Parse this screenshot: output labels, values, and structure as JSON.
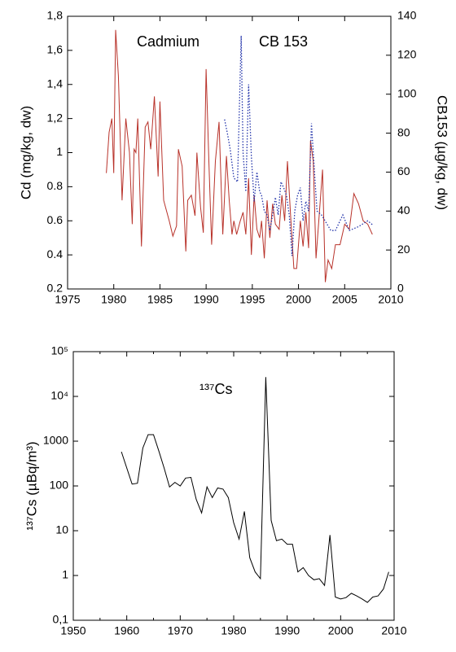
{
  "chart_data": [
    {
      "type": "line",
      "xlim": [
        1975,
        2010
      ],
      "xticks": [
        1975,
        1980,
        1985,
        1990,
        1995,
        2000,
        2005,
        2010
      ],
      "ylim": [
        0.2,
        1.8
      ],
      "yticks": [
        0.2,
        0.4,
        0.6,
        0.8,
        1,
        {
          "value": 1.2,
          "label": "1,2"
        },
        {
          "value": 1.4,
          "label": "1,4"
        },
        {
          "value": 1.6,
          "label": "1,6"
        },
        {
          "value": 1.8,
          "label": "1,8"
        }
      ],
      "y2lim": [
        0,
        140
      ],
      "y2ticks": [
        0,
        20,
        40,
        60,
        80,
        100,
        120,
        140
      ],
      "ylabel": "Cd (mg/kg, dw)",
      "y2label": "CB153 (µg/kg, dw)",
      "series": [
        {
          "name": "Cadmium",
          "color": "#b8322a",
          "dash": false,
          "x": [
            1979.2,
            1979.5,
            1979.8,
            1980.0,
            1980.2,
            1980.5,
            1980.9,
            1981.3,
            1981.7,
            1982.0,
            1982.2,
            1982.4,
            1982.6,
            1983.0,
            1983.4,
            1983.7,
            1984.0,
            1984.4,
            1984.8,
            1985.0,
            1985.4,
            1986.0,
            1986.4,
            1986.8,
            1987.0,
            1987.4,
            1987.8,
            1988.0,
            1988.4,
            1988.8,
            1989.0,
            1989.4,
            1989.7,
            1990.0,
            1990.3,
            1990.6,
            1991.0,
            1991.4,
            1991.8,
            1992.2,
            1992.5,
            1992.8,
            1993.0,
            1993.3,
            1993.7,
            1994.0,
            1994.3,
            1994.6,
            1994.9,
            1995.2,
            1995.5,
            1995.8,
            1996.0,
            1996.3,
            1996.6,
            1996.9,
            1997.2,
            1997.5,
            1997.9,
            1998.2,
            1998.5,
            1998.8,
            1999.2,
            1999.5,
            1999.8,
            2000.2,
            2000.5,
            2000.8,
            2001.1,
            2001.3,
            2001.6,
            2001.9,
            2002.2,
            2002.6,
            2002.9,
            2003.2,
            2003.6,
            2004.0,
            2004.5,
            2005.0,
            2005.5,
            2006.0,
            2006.5,
            2007.0,
            2007.5,
            2008.0
          ],
          "values": [
            0.88,
            1.12,
            1.2,
            0.88,
            1.72,
            1.45,
            0.72,
            1.2,
            1.0,
            0.58,
            1.02,
            1.0,
            1.2,
            0.45,
            1.15,
            1.18,
            1.02,
            1.33,
            0.86,
            1.3,
            0.72,
            0.6,
            0.51,
            0.57,
            1.02,
            0.92,
            0.42,
            0.72,
            0.75,
            0.63,
            1.0,
            0.68,
            0.53,
            1.49,
            0.95,
            0.46,
            0.95,
            1.18,
            0.52,
            0.98,
            0.72,
            0.52,
            0.6,
            0.52,
            0.6,
            0.65,
            0.52,
            0.85,
            0.4,
            0.75,
            0.55,
            0.5,
            0.6,
            0.38,
            0.72,
            0.5,
            0.7,
            0.58,
            0.55,
            0.75,
            0.6,
            0.95,
            0.58,
            0.32,
            0.32,
            0.6,
            0.45,
            0.65,
            0.44,
            1.07,
            0.95,
            0.38,
            0.6,
            0.9,
            0.24,
            0.37,
            0.32,
            0.46,
            0.46,
            0.58,
            0.55,
            0.76,
            0.7,
            0.6,
            0.58,
            0.52
          ]
        },
        {
          "name": "CB 153",
          "color": "#2233aa",
          "dash": true,
          "axis": "y2",
          "x": [
            1992.0,
            1992.3,
            1992.6,
            1993.0,
            1993.4,
            1993.8,
            1994.0,
            1994.3,
            1994.6,
            1994.9,
            1995.2,
            1995.5,
            1995.8,
            1996.0,
            1996.3,
            1996.6,
            1996.9,
            1997.2,
            1997.5,
            1997.8,
            1998.1,
            1998.4,
            1998.7,
            1999.0,
            1999.3,
            1999.6,
            1999.9,
            2000.2,
            2000.5,
            2000.8,
            2001.1,
            2001.4,
            2001.6,
            2002.0,
            2002.5,
            2003.5,
            2004.0,
            2004.8,
            2005.5,
            2006.5,
            2007.5,
            2008.0
          ],
          "values": [
            87,
            80,
            72,
            57,
            55,
            130,
            70,
            50,
            105,
            68,
            45,
            60,
            50,
            48,
            40,
            38,
            30,
            38,
            47,
            38,
            55,
            52,
            48,
            38,
            17,
            40,
            48,
            52,
            35,
            45,
            40,
            85,
            70,
            40,
            38,
            30,
            30,
            38,
            30,
            32,
            35,
            33
          ]
        }
      ]
    },
    {
      "type": "line",
      "log_y": true,
      "xlim": [
        1950,
        2010
      ],
      "xticks": [
        1950,
        1960,
        1970,
        1980,
        1990,
        2000,
        2010
      ],
      "ylim": [
        0.1,
        100000
      ],
      "yticks": [
        {
          "value": 0.1,
          "label": "0,1"
        },
        1,
        10,
        100,
        1000,
        {
          "value": 10000,
          "label": "10⁴"
        },
        {
          "value": 100000,
          "label": "10⁵"
        }
      ],
      "ylabel": "¹³⁷Cs (µBq/m³)",
      "annotation": "¹³⁷Cs",
      "color": "#000000",
      "x": [
        1959,
        1961,
        1962,
        1963,
        1964,
        1965,
        1966,
        1967,
        1968,
        1969,
        1970,
        1971,
        1972,
        1973,
        1974,
        1975,
        1976,
        1977,
        1978,
        1979,
        1980,
        1981,
        1982,
        1983,
        1984,
        1985,
        1986,
        1987,
        1988,
        1989,
        1990,
        1991,
        1992,
        1993,
        1994,
        1995,
        1996,
        1997,
        1998,
        1999,
        2000,
        2001,
        2002,
        2003,
        2004,
        2005,
        2006,
        2007,
        2008,
        2009
      ],
      "values": [
        580,
        110,
        115,
        700,
        1400,
        1400,
        600,
        250,
        95,
        120,
        100,
        150,
        155,
        50,
        25,
        95,
        55,
        90,
        85,
        55,
        15,
        6.5,
        27,
        2.5,
        1.2,
        0.85,
        27000,
        17,
        6,
        6.5,
        5,
        5,
        1.2,
        1.5,
        1,
        0.8,
        0.85,
        0.6,
        8,
        0.33,
        0.3,
        0.32,
        0.4,
        0.35,
        0.3,
        0.25,
        0.33,
        0.35,
        0.5,
        1.2
      ]
    }
  ]
}
